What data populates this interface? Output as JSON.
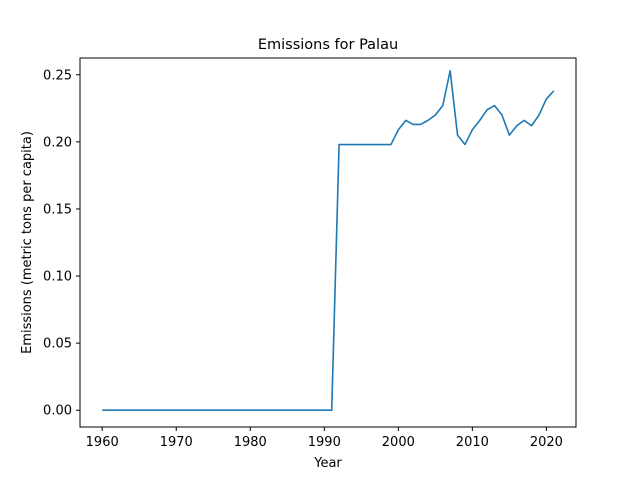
{
  "chart_data": {
    "type": "line",
    "title": "Emissions for Palau",
    "xlabel": "Year",
    "ylabel": "Emissions (metric tons per capita)",
    "xlim": [
      1957,
      2024
    ],
    "ylim": [
      -0.0125,
      0.2625
    ],
    "xticks": [
      1960,
      1970,
      1980,
      1990,
      2000,
      2010,
      2020
    ],
    "xtick_labels": [
      "1960",
      "1970",
      "1980",
      "1990",
      "2000",
      "2010",
      "2020"
    ],
    "yticks": [
      0.0,
      0.05,
      0.1,
      0.15,
      0.2,
      0.25
    ],
    "ytick_labels": [
      "0.00",
      "0.05",
      "0.10",
      "0.15",
      "0.20",
      "0.25"
    ],
    "grid": false,
    "series": [
      {
        "color": "#1f77b4",
        "x": [
          1960,
          1961,
          1962,
          1963,
          1964,
          1965,
          1966,
          1967,
          1968,
          1969,
          1970,
          1971,
          1972,
          1973,
          1974,
          1975,
          1976,
          1977,
          1978,
          1979,
          1980,
          1981,
          1982,
          1983,
          1984,
          1985,
          1986,
          1987,
          1988,
          1989,
          1990,
          1991,
          1992,
          1993,
          1994,
          1995,
          1996,
          1997,
          1998,
          1999,
          2000,
          2001,
          2002,
          2003,
          2004,
          2005,
          2006,
          2007,
          2008,
          2009,
          2010,
          2011,
          2012,
          2013,
          2014,
          2015,
          2016,
          2017,
          2018,
          2019,
          2020,
          2021
        ],
        "y": [
          0,
          0,
          0,
          0,
          0,
          0,
          0,
          0,
          0,
          0,
          0,
          0,
          0,
          0,
          0,
          0,
          0,
          0,
          0,
          0,
          0,
          0,
          0,
          0,
          0,
          0,
          0,
          0,
          0,
          0,
          0,
          0,
          0.198,
          0.198,
          0.198,
          0.198,
          0.198,
          0.198,
          0.198,
          0.198,
          0.209,
          0.216,
          0.213,
          0.213,
          0.216,
          0.22,
          0.227,
          0.253,
          0.205,
          0.198,
          0.209,
          0.216,
          0.224,
          0.227,
          0.22,
          0.205,
          0.212,
          0.216,
          0.212,
          0.22,
          0.232,
          0.238
        ]
      }
    ]
  }
}
